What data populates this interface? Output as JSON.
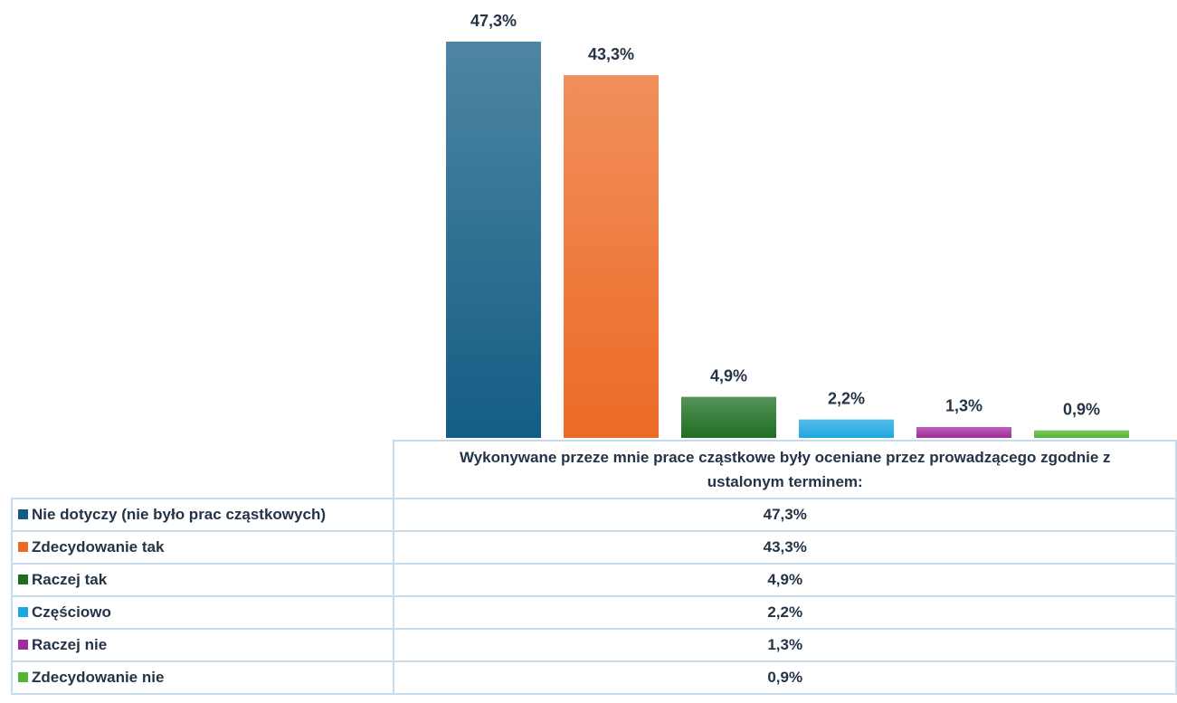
{
  "chart_data": {
    "type": "bar",
    "categories": [
      "Wykonywane przeze mnie prace cząstkowe były oceniane przez prowadzącego zgodnie z ustalonym terminem:"
    ],
    "ylim": [
      0,
      50
    ],
    "series": [
      {
        "name": "Nie dotyczy (nie było prac cząstkowych)",
        "color": "#135d84",
        "values": [
          47.3
        ],
        "value_labels": [
          "47,3%"
        ]
      },
      {
        "name": "Zdecydowanie tak",
        "color": "#ec6a25",
        "values": [
          43.3
        ],
        "value_labels": [
          "43,3%"
        ]
      },
      {
        "name": "Raczej tak",
        "color": "#1e6e22",
        "values": [
          4.9
        ],
        "value_labels": [
          "4,9%"
        ]
      },
      {
        "name": "Częściowo",
        "color": "#1ea6e0",
        "values": [
          2.2
        ],
        "value_labels": [
          "2,2%"
        ]
      },
      {
        "name": "Raczej nie",
        "color": "#a12c9c",
        "values": [
          1.3
        ],
        "value_labels": [
          "1,3%"
        ]
      },
      {
        "name": "Zdecydowanie nie",
        "color": "#54b435",
        "values": [
          0.9
        ],
        "value_labels": [
          "0,9%"
        ]
      }
    ]
  }
}
